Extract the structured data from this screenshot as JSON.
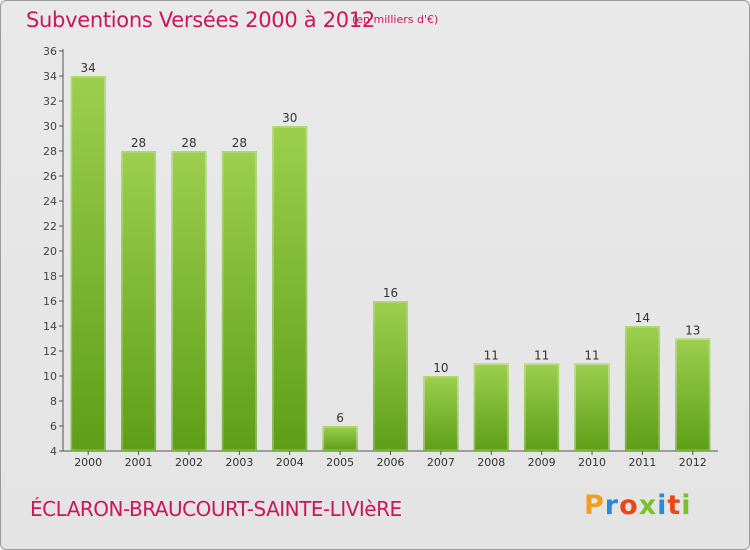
{
  "header": {
    "title": "Subventions Versées 2000 à 2012",
    "unit": "(en milliers d'€)"
  },
  "footer": {
    "commune": "ÉCLARON-BRAUCOURT-SAINTE-LIVIèRE",
    "brand": "Proxiti"
  },
  "colors": {
    "bar_top": "#9ccf4e",
    "bar_bottom": "#5e9e17",
    "title": "#c8175a"
  },
  "chart_data": {
    "type": "bar",
    "title": "Subventions Versées 2000 à 2012",
    "subtitle": "(en milliers d'€)",
    "xlabel": "",
    "ylabel": "",
    "categories": [
      "2000",
      "2001",
      "2002",
      "2003",
      "2004",
      "2005",
      "2006",
      "2007",
      "2008",
      "2009",
      "2010",
      "2011",
      "2012"
    ],
    "values": [
      34,
      28,
      28,
      28,
      30,
      6,
      16,
      10,
      11,
      11,
      11,
      14,
      13
    ],
    "data_labels": [
      "34",
      "28",
      "28",
      "28",
      "30",
      "6",
      "16",
      "10",
      "11",
      "11",
      "11",
      "14",
      "13"
    ],
    "yticks": [
      4,
      6,
      8,
      10,
      12,
      14,
      16,
      18,
      20,
      22,
      24,
      26,
      28,
      30,
      32,
      34,
      36
    ],
    "ylim": [
      4,
      36
    ],
    "grid": false,
    "legend": "none"
  }
}
